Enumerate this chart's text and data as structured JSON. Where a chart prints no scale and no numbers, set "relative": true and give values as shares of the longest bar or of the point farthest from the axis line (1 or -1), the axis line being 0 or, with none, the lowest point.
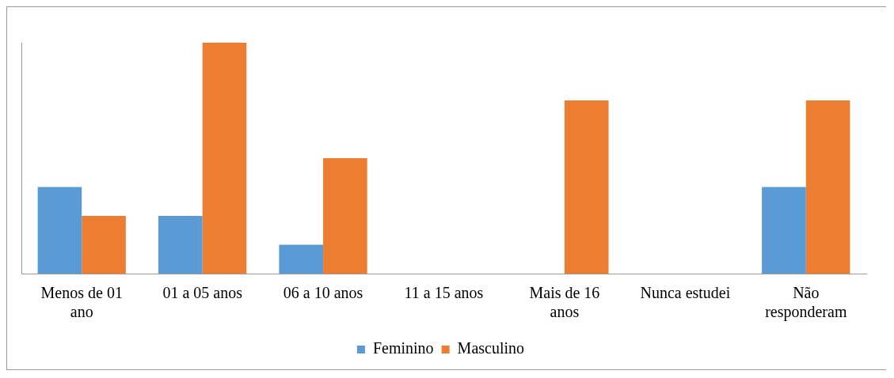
{
  "chart_data": {
    "type": "bar",
    "relative": true,
    "categories": [
      "Menos de 01 ano",
      "01 a 05 anos",
      "06 a 10 anos",
      "11 a 15 anos",
      "Mais de 16 anos",
      "Nunca estudei",
      "Não responderam"
    ],
    "series": [
      {
        "name": "Feminino",
        "color": "#5b9bd5",
        "values": [
          0.375,
          0.25,
          0.125,
          0,
          0,
          0,
          0.375
        ]
      },
      {
        "name": "Masculino",
        "color": "#ed7d31",
        "values": [
          0.25,
          1,
          0.5,
          0,
          0.75,
          0,
          0.75
        ]
      }
    ],
    "legend": "bottom",
    "grid": false
  }
}
